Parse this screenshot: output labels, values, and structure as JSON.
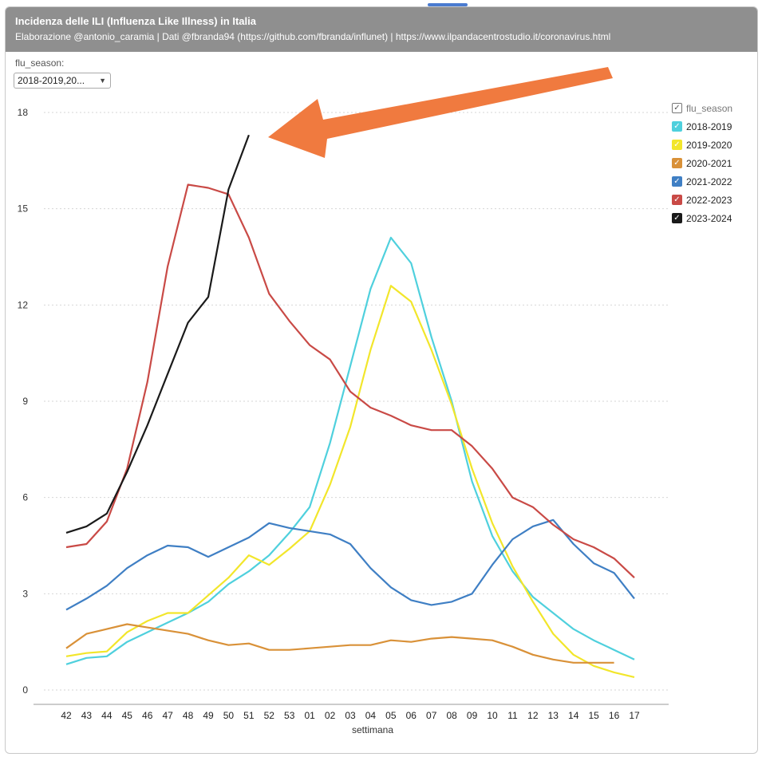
{
  "header": {
    "title": "Incidenza delle ILI (Influenza Like Illness) in Italia",
    "subtitle": "Elaborazione @antonio_caramia | Dati @fbranda94 (https://github.com/fbranda/influnet) | https://www.ilpandacentrostudio.it/coronavirus.html"
  },
  "filter": {
    "label": "flu_season:",
    "value": "2018-2019,20..."
  },
  "legend_title": "flu_season",
  "chart_data": {
    "type": "line",
    "xlabel": "settimana",
    "ylabel": "",
    "ylim": [
      0,
      18
    ],
    "yticks": [
      0,
      3,
      6,
      9,
      12,
      15,
      18
    ],
    "grid": true,
    "legend_position": "right",
    "categories": [
      "42",
      "43",
      "44",
      "45",
      "46",
      "47",
      "48",
      "49",
      "50",
      "51",
      "52",
      "53",
      "01",
      "02",
      "03",
      "04",
      "05",
      "06",
      "07",
      "08",
      "09",
      "10",
      "11",
      "12",
      "13",
      "14",
      "15",
      "16",
      "17"
    ],
    "series": [
      {
        "name": "2018-2019",
        "color": "#4fd0dd",
        "values": [
          0.8,
          1.0,
          1.05,
          1.5,
          1.8,
          2.1,
          2.4,
          2.75,
          3.3,
          3.7,
          4.2,
          4.9,
          5.7,
          7.7,
          10.1,
          12.5,
          14.1,
          13.3,
          11.0,
          9.0,
          6.5,
          4.8,
          3.7,
          2.9,
          2.4,
          1.9,
          1.55,
          1.25,
          0.95
        ]
      },
      {
        "name": "2019-2020",
        "color": "#f2e62b",
        "values": [
          1.05,
          1.15,
          1.2,
          1.8,
          2.15,
          2.4,
          2.4,
          2.95,
          3.5,
          4.2,
          3.9,
          4.4,
          4.95,
          6.4,
          8.2,
          10.6,
          12.6,
          12.1,
          10.6,
          8.9,
          6.9,
          5.2,
          3.85,
          2.75,
          1.75,
          1.1,
          0.75,
          0.55,
          0.4
        ]
      },
      {
        "name": "2020-2021",
        "color": "#d99138",
        "values": [
          1.3,
          1.75,
          1.9,
          2.05,
          1.95,
          1.85,
          1.75,
          1.55,
          1.4,
          1.45,
          1.25,
          1.25,
          1.3,
          1.35,
          1.4,
          1.4,
          1.55,
          1.5,
          1.6,
          1.65,
          1.6,
          1.55,
          1.35,
          1.1,
          0.95,
          0.85,
          0.85,
          0.85,
          null
        ]
      },
      {
        "name": "2021-2022",
        "color": "#3f7fc4",
        "values": [
          2.5,
          2.85,
          3.25,
          3.8,
          4.2,
          4.5,
          4.45,
          4.15,
          4.45,
          4.75,
          5.2,
          5.05,
          4.95,
          4.85,
          4.55,
          3.8,
          3.2,
          2.8,
          2.65,
          2.75,
          3.0,
          3.9,
          4.7,
          5.1,
          5.3,
          4.55,
          3.95,
          3.65,
          2.85
        ]
      },
      {
        "name": "2022-2023",
        "color": "#c94a46",
        "values": [
          4.45,
          4.55,
          5.25,
          6.9,
          9.6,
          13.2,
          15.75,
          15.65,
          15.45,
          14.1,
          12.35,
          11.5,
          10.75,
          10.3,
          9.3,
          8.8,
          8.55,
          8.25,
          8.1,
          8.1,
          7.6,
          6.9,
          6.0,
          5.7,
          5.15,
          4.7,
          4.45,
          4.1,
          3.5
        ]
      },
      {
        "name": "2023-2024",
        "color": "#1a1a1a",
        "values": [
          4.9,
          5.1,
          5.5,
          6.8,
          8.25,
          9.85,
          11.45,
          12.25,
          15.6,
          17.3,
          null,
          null,
          null,
          null,
          null,
          null,
          null,
          null,
          null,
          null,
          null,
          null,
          null,
          null,
          null,
          null,
          null,
          null,
          null
        ]
      }
    ]
  }
}
